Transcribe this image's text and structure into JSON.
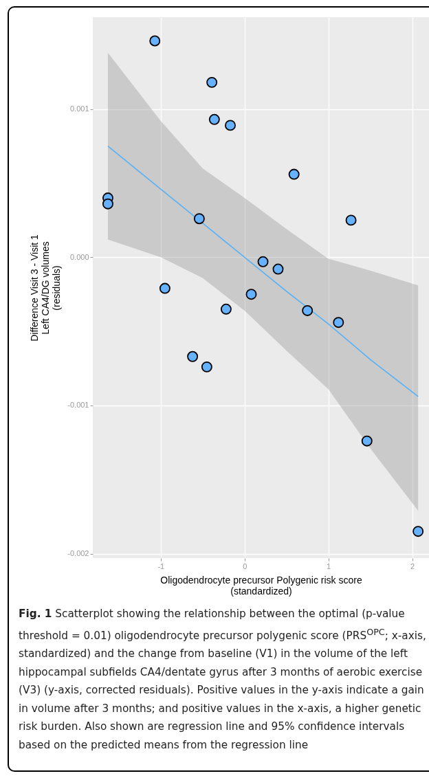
{
  "chart_data": {
    "type": "scatter",
    "xlabel": "Oligodendrocyte precursor Polygenic risk score\n(standardized)",
    "ylabel": "Difference Visit 3 - Visit 1\nLeft CA4/DG volumes\n(residuals)",
    "xlim": [
      -1.81,
      2.2
    ],
    "xticks": [
      -1,
      0,
      1,
      2
    ],
    "ylim": [
      -0.00203,
      0.00162
    ],
    "yticks": [
      0.001,
      {
        "value": 0,
        "label": "0.000"
      },
      -0.001,
      -0.002
    ],
    "grid": true,
    "series": [
      {
        "type": "scatter",
        "marker": "circle",
        "color": "#66b2ff",
        "x": [
          -1.07,
          -0.39,
          -0.36,
          -0.17,
          0.59,
          -1.63,
          -1.63,
          1.27,
          -0.54,
          0.22,
          0.4,
          -0.95,
          0.08,
          -0.22,
          0.75,
          1.12,
          -0.62,
          -0.45,
          1.46,
          2.07
        ],
        "values": [
          0.00146,
          0.00118,
          0.00093,
          0.00089,
          0.00056,
          0.0004,
          0.00036,
          0.00025,
          0.00026,
          -3e-05,
          -8e-05,
          -0.00021,
          -0.00025,
          -0.00035,
          -0.00036,
          -0.00044,
          -0.00067,
          -0.00074,
          -0.00124,
          -0.00185
        ]
      },
      {
        "type": "line",
        "color": "#56b1f7",
        "x": [
          -1.63,
          -1,
          -0.5,
          0,
          0.5,
          1,
          1.5,
          2.07
        ],
        "values": [
          0.00075,
          0.00046,
          0.00023,
          0.0,
          -0.00023,
          -0.00045,
          -0.00069,
          -0.00094
        ],
        "lower": [
          0.00012,
          0.0,
          -0.00014,
          -0.00036,
          -0.00063,
          -0.00089,
          -0.00129,
          -0.00171
        ],
        "upper": [
          0.00138,
          0.00092,
          0.0006,
          0.0004,
          0.00019,
          -1e-05,
          -9e-05,
          -0.00019
        ]
      }
    ],
    "annotations": [
      "Fig. 1",
      "Scatterplot showing the relationship between the optimal (p-value threshold = 0.01) oligodendrocyte precursor polygenic score (PRS$^{OPC}$; x-axis, standardized) and the change from baseline (V1) in the volume of the left hippocampal subfields CA4/dentate gyrus after 3 months of aerobic exercise (V3) (y-axis, corrected residuals). Positive values in the y-axis indicate a gain in volume after 3 months; and positive values in the x-axis, a higher genetic risk burden. Also shown are regression line and 95% confidence intervals based on the predicted means from the regression line"
    ]
  }
}
